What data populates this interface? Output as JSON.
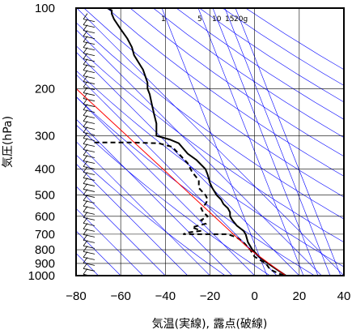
{
  "chart_data": {
    "type": "line",
    "subtype": "emagram",
    "xlabel": "気温(実線), 露点(破線)",
    "ylabel": "気圧(hPa)",
    "xlim": [
      -80,
      40
    ],
    "ylim": [
      1000,
      100
    ],
    "yscale": "log",
    "x_ticks": [
      -80,
      -60,
      -40,
      -20,
      0,
      20,
      40
    ],
    "y_ticks": [
      100,
      200,
      300,
      400,
      500,
      600,
      700,
      800,
      900,
      1000
    ],
    "mixing_ratio_labels": [
      "1",
      "5",
      "10",
      "15",
      "20g"
    ],
    "colors": {
      "temperature": "#000000",
      "dewpoint": "#000000",
      "parcel": "#ff0000",
      "reference_lines": "#0000ff",
      "grid": "#000000"
    },
    "series": [
      {
        "key": "temperature",
        "style": "solid",
        "points": [
          {
            "p": 1000,
            "t": 14
          },
          {
            "p": 950,
            "t": 10
          },
          {
            "p": 900,
            "t": 6
          },
          {
            "p": 850,
            "t": 2
          },
          {
            "p": 800,
            "t": -1
          },
          {
            "p": 750,
            "t": -3
          },
          {
            "p": 700,
            "t": -4
          },
          {
            "p": 680,
            "t": -5
          },
          {
            "p": 650,
            "t": -8
          },
          {
            "p": 620,
            "t": -10
          },
          {
            "p": 600,
            "t": -11
          },
          {
            "p": 580,
            "t": -11
          },
          {
            "p": 560,
            "t": -12
          },
          {
            "p": 540,
            "t": -14
          },
          {
            "p": 520,
            "t": -15
          },
          {
            "p": 500,
            "t": -17
          },
          {
            "p": 470,
            "t": -19
          },
          {
            "p": 450,
            "t": -20
          },
          {
            "p": 420,
            "t": -21
          },
          {
            "p": 400,
            "t": -22
          },
          {
            "p": 370,
            "t": -26
          },
          {
            "p": 350,
            "t": -30
          },
          {
            "p": 320,
            "t": -34
          },
          {
            "p": 310,
            "t": -38
          },
          {
            "p": 300,
            "t": -44
          },
          {
            "p": 290,
            "t": -44
          },
          {
            "p": 270,
            "t": -44
          },
          {
            "p": 250,
            "t": -45
          },
          {
            "p": 230,
            "t": -46
          },
          {
            "p": 210,
            "t": -47
          },
          {
            "p": 200,
            "t": -48
          },
          {
            "p": 190,
            "t": -48
          },
          {
            "p": 170,
            "t": -50
          },
          {
            "p": 150,
            "t": -54
          },
          {
            "p": 140,
            "t": -55
          },
          {
            "p": 130,
            "t": -57
          },
          {
            "p": 120,
            "t": -60
          },
          {
            "p": 110,
            "t": -63
          },
          {
            "p": 105,
            "t": -64
          },
          {
            "p": 102,
            "t": -64
          },
          {
            "p": 100,
            "t": -66
          }
        ]
      },
      {
        "key": "dewpoint",
        "style": "dashed",
        "points": [
          {
            "p": 1000,
            "t": 13
          },
          {
            "p": 950,
            "t": 7
          },
          {
            "p": 900,
            "t": 5
          },
          {
            "p": 850,
            "t": 0
          },
          {
            "p": 800,
            "t": -2
          },
          {
            "p": 750,
            "t": -5
          },
          {
            "p": 720,
            "t": -8
          },
          {
            "p": 700,
            "t": -12
          },
          {
            "p": 700,
            "t": -32
          },
          {
            "p": 690,
            "t": -30
          },
          {
            "p": 680,
            "t": -24
          },
          {
            "p": 660,
            "t": -28
          },
          {
            "p": 640,
            "t": -22
          },
          {
            "p": 620,
            "t": -24
          },
          {
            "p": 600,
            "t": -21
          },
          {
            "p": 580,
            "t": -23
          },
          {
            "p": 560,
            "t": -24
          },
          {
            "p": 540,
            "t": -22
          },
          {
            "p": 520,
            "t": -21
          },
          {
            "p": 500,
            "t": -22
          },
          {
            "p": 470,
            "t": -25
          },
          {
            "p": 440,
            "t": -25
          },
          {
            "p": 410,
            "t": -28
          },
          {
            "p": 380,
            "t": -30
          },
          {
            "p": 350,
            "t": -34
          },
          {
            "p": 330,
            "t": -37
          },
          {
            "p": 320,
            "t": -43
          },
          {
            "p": 318,
            "t": -55
          },
          {
            "p": 318,
            "t": -72
          }
        ]
      },
      {
        "key": "parcel",
        "style": "solid",
        "points": [
          {
            "p": 1000,
            "t": 14
          },
          {
            "p": 800,
            "t": -2
          },
          {
            "p": 200,
            "t": -80
          }
        ]
      }
    ]
  }
}
